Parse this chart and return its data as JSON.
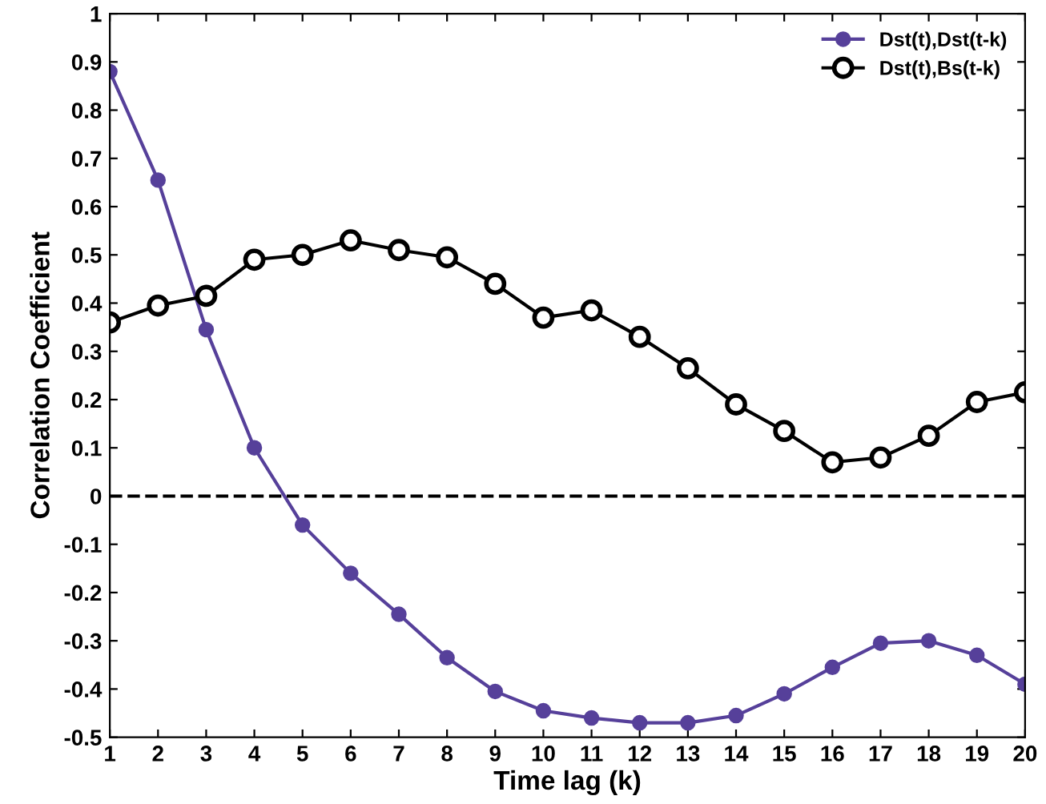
{
  "chart_data": {
    "type": "line",
    "xlabel": "Time lag (k)",
    "ylabel": "Correlation Coefficient",
    "x": [
      1,
      2,
      3,
      4,
      5,
      6,
      7,
      8,
      9,
      10,
      11,
      12,
      13,
      14,
      15,
      16,
      17,
      18,
      19,
      20
    ],
    "series": [
      {
        "name": "Dst(t),Dst(t-k)",
        "color": "#56409a",
        "marker": "circle",
        "values": [
          0.88,
          0.655,
          0.345,
          0.1,
          -0.06,
          -0.16,
          -0.245,
          -0.335,
          -0.405,
          -0.445,
          -0.46,
          -0.47,
          -0.47,
          -0.455,
          -0.41,
          -0.355,
          -0.305,
          -0.3,
          -0.33,
          -0.39
        ]
      },
      {
        "name": "Dst(t),Bs(t-k)",
        "color": "#000000",
        "marker": "open circle",
        "values": [
          0.36,
          0.395,
          0.415,
          0.49,
          0.5,
          0.53,
          0.51,
          0.495,
          0.44,
          0.37,
          0.385,
          0.33,
          0.265,
          0.19,
          0.135,
          0.07,
          0.08,
          0.125,
          0.195,
          0.215
        ]
      }
    ],
    "xlim": [
      1,
      20
    ],
    "xticks": [
      1,
      2,
      3,
      4,
      5,
      6,
      7,
      8,
      9,
      10,
      11,
      12,
      13,
      14,
      15,
      16,
      17,
      18,
      19,
      20
    ],
    "ylim": [
      -0.5,
      1
    ],
    "yticks": [
      -0.5,
      -0.4,
      -0.3,
      -0.2,
      -0.1,
      0,
      0.1,
      0.2,
      0.3,
      0.4,
      0.5,
      0.6,
      0.7,
      0.8,
      0.9,
      1
    ],
    "ref_lines": [
      {
        "axis": "y",
        "value": 0,
        "color": "#000000",
        "line_style": "dashed"
      }
    ],
    "grid": false,
    "legend": "top right",
    "line_style": "solid"
  }
}
